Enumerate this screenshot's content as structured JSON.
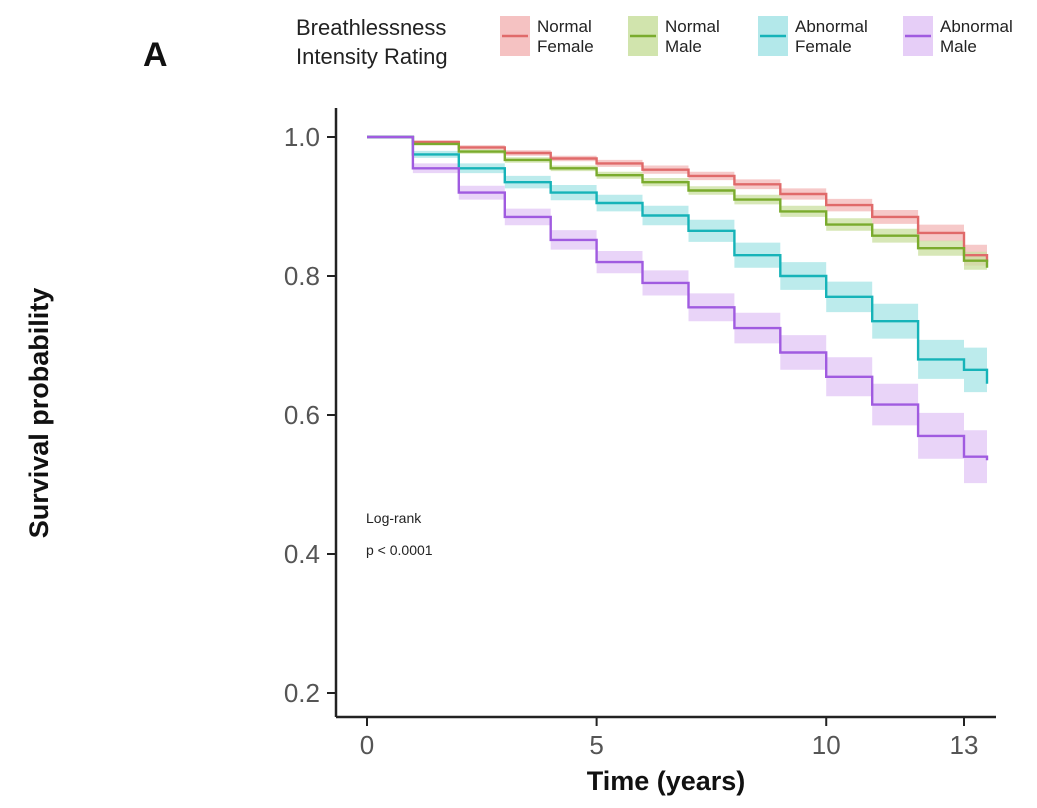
{
  "panel_label": "A",
  "chart_data": {
    "type": "line",
    "title": "",
    "xlabel": "Time (years)",
    "ylabel": "Survival probability",
    "xlim": [
      0,
      13.5
    ],
    "ylim": [
      0.17,
      1.04
    ],
    "xticks": [
      0,
      5,
      10,
      13
    ],
    "xtick_labels": [
      "0",
      "5",
      "10",
      "13"
    ],
    "yticks": [
      0.2,
      0.4,
      0.6,
      0.8,
      1.0
    ],
    "ytick_labels": [
      "0.2",
      "0.4",
      "0.6",
      "0.8",
      "1.0"
    ],
    "grid": false,
    "legend": {
      "title_lines": [
        "Breathlessness",
        "Intensity Rating"
      ],
      "placement": "top"
    },
    "annotations": [
      "Log-rank",
      "p < 0.0001"
    ],
    "series": [
      {
        "label_lines": [
          "Normal",
          "Female"
        ],
        "color": "#e06a6a",
        "band_color": "#f3b7b7",
        "x": [
          0,
          1,
          2,
          3,
          4,
          5,
          6,
          7,
          8,
          9,
          10,
          11,
          12,
          13,
          13.5
        ],
        "y": [
          1.0,
          0.993,
          0.985,
          0.977,
          0.969,
          0.962,
          0.953,
          0.944,
          0.932,
          0.918,
          0.902,
          0.885,
          0.862,
          0.83,
          0.82
        ],
        "ci_halfwidth": [
          0.0,
          0.002,
          0.003,
          0.004,
          0.004,
          0.005,
          0.006,
          0.006,
          0.007,
          0.008,
          0.009,
          0.01,
          0.012,
          0.015,
          0.018
        ]
      },
      {
        "label_lines": [
          "Normal",
          "Male"
        ],
        "color": "#7aab2d",
        "band_color": "#c9df9f",
        "x": [
          0,
          1,
          2,
          3,
          4,
          5,
          6,
          7,
          8,
          9,
          10,
          11,
          12,
          13,
          13.5
        ],
        "y": [
          1.0,
          0.99,
          0.979,
          0.967,
          0.955,
          0.945,
          0.935,
          0.923,
          0.91,
          0.893,
          0.874,
          0.858,
          0.84,
          0.822,
          0.812
        ],
        "ci_halfwidth": [
          0.0,
          0.002,
          0.003,
          0.004,
          0.004,
          0.005,
          0.006,
          0.006,
          0.007,
          0.008,
          0.009,
          0.01,
          0.011,
          0.013,
          0.015
        ]
      },
      {
        "label_lines": [
          "Abnormal",
          "Female"
        ],
        "color": "#16b3b8",
        "band_color": "#a6e4e6",
        "x": [
          0,
          1,
          2,
          3,
          4,
          5,
          6,
          7,
          8,
          9,
          10,
          11,
          12,
          13,
          13.5
        ],
        "y": [
          1.0,
          0.975,
          0.955,
          0.935,
          0.92,
          0.905,
          0.887,
          0.865,
          0.83,
          0.8,
          0.77,
          0.735,
          0.68,
          0.665,
          0.645
        ],
        "ci_halfwidth": [
          0.0,
          0.005,
          0.007,
          0.009,
          0.011,
          0.012,
          0.014,
          0.016,
          0.018,
          0.02,
          0.022,
          0.025,
          0.028,
          0.032,
          0.045
        ]
      },
      {
        "label_lines": [
          "Abnormal",
          "Male"
        ],
        "color": "#a05be0",
        "band_color": "#e2c6f6",
        "x": [
          0,
          1,
          2,
          3,
          4,
          5,
          6,
          7,
          8,
          9,
          10,
          11,
          12,
          13,
          13.5
        ],
        "y": [
          1.0,
          0.955,
          0.92,
          0.885,
          0.852,
          0.82,
          0.79,
          0.755,
          0.725,
          0.69,
          0.655,
          0.615,
          0.57,
          0.54,
          0.535
        ],
        "ci_halfwidth": [
          0.0,
          0.007,
          0.01,
          0.012,
          0.014,
          0.016,
          0.018,
          0.02,
          0.022,
          0.025,
          0.028,
          0.03,
          0.033,
          0.038,
          0.042
        ]
      }
    ]
  }
}
